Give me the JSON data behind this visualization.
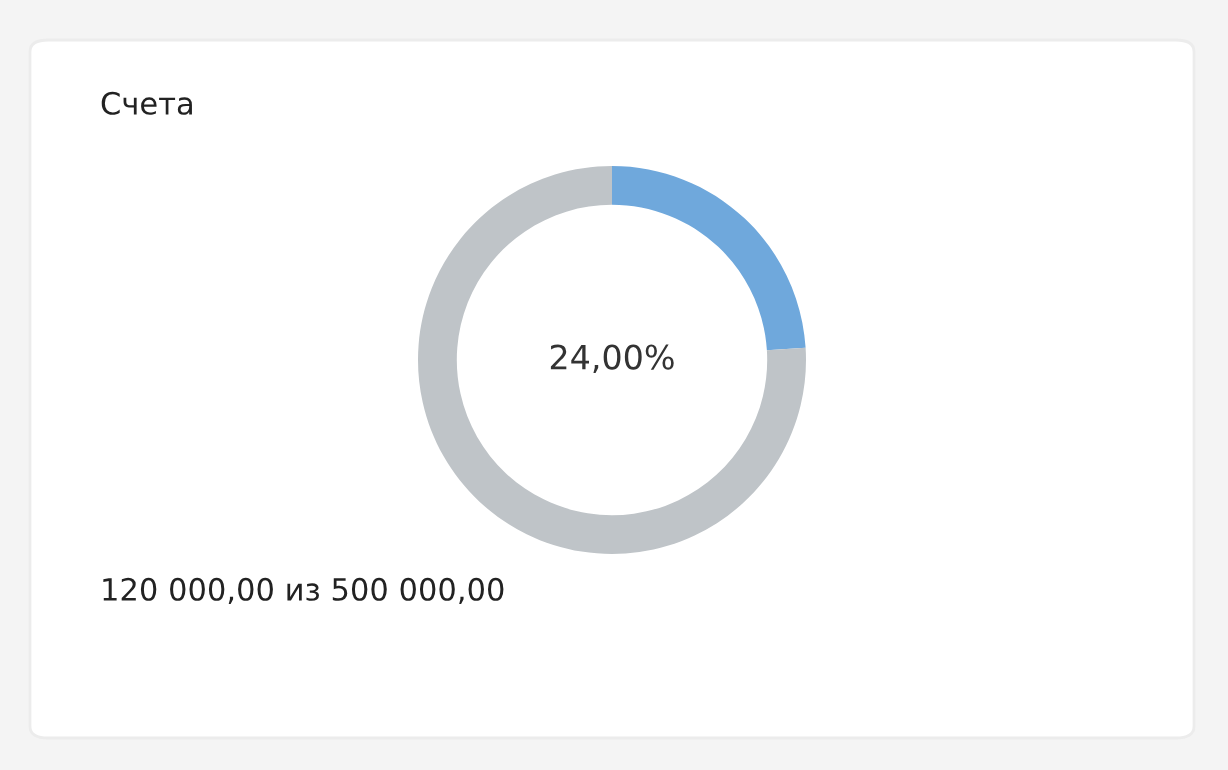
{
  "chart_data": {
    "type": "donut",
    "title": "Счета",
    "categories": [
      null,
      null
    ],
    "values": [
      24,
      76
    ],
    "colors": [
      "#6fa8dc",
      "#bfc4c8"
    ],
    "annotations": [
      "24,00%",
      "120 000,00 из 500 000,00"
    ],
    "legend": false
  }
}
